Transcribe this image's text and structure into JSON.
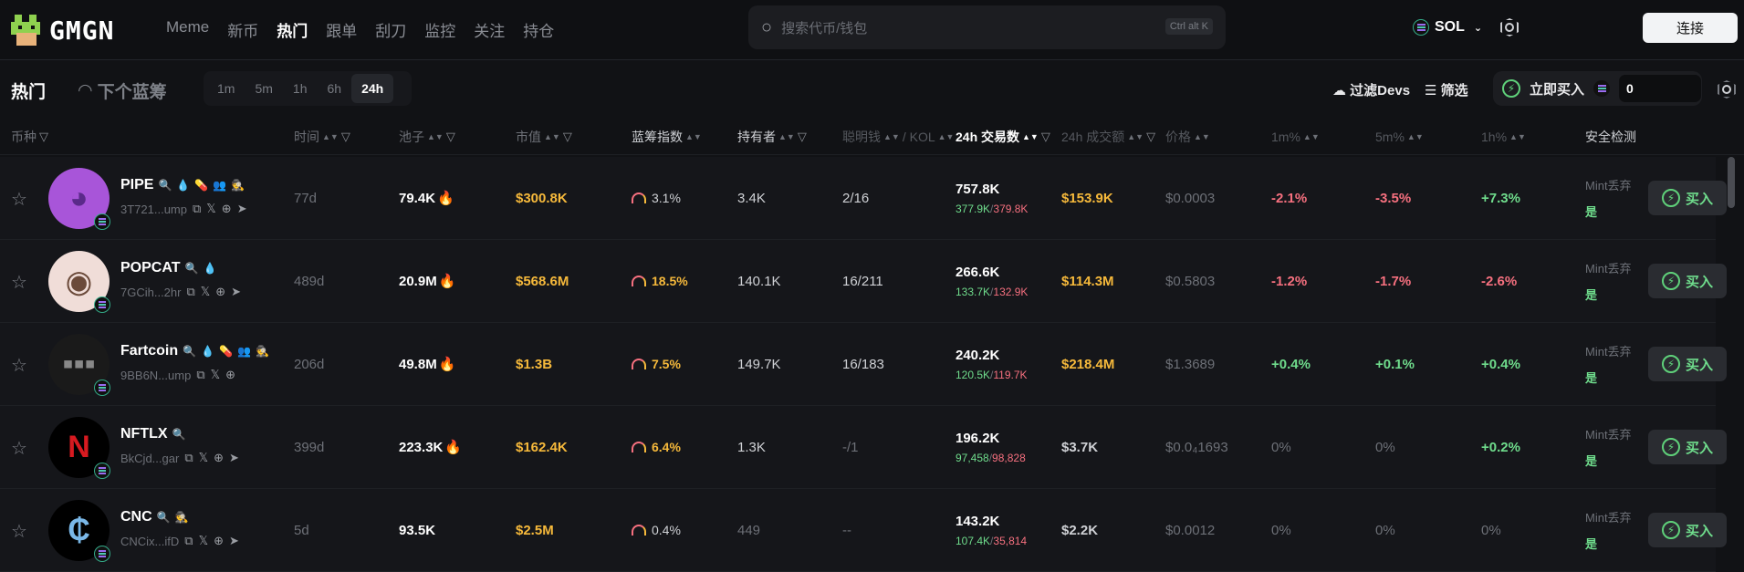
{
  "header": {
    "logo": "GMGN",
    "nav": [
      "Meme",
      "新币",
      "热门",
      "跟单",
      "刮刀",
      "监控",
      "关注",
      "持仓"
    ],
    "active_nav": "热门",
    "search_placeholder": "搜索代币/钱包",
    "search_shortcut": "Ctrl alt K",
    "chain": "SOL",
    "connect": "连接"
  },
  "subbar": {
    "title": "热门",
    "next_bluechip": "下个蓝筹",
    "time_tabs": [
      "1m",
      "5m",
      "1h",
      "6h",
      "24h"
    ],
    "active_tab": "24h",
    "filter_devs": "过滤Devs",
    "filter": "筛选",
    "quick_buy": "立即买入",
    "quick_buy_amount": "0"
  },
  "columns": {
    "coin": "币种",
    "age": "时间",
    "pool": "池子",
    "mcap": "市值",
    "bluechip": "蓝筹指数",
    "holders": "持有者",
    "smart": "聪明钱",
    "kol": "/ KOL",
    "txns": "24h 交易数",
    "volume": "24h 成交额",
    "price": "价格",
    "m1": "1m%",
    "m5": "5m%",
    "h1": "1h%",
    "safety": "安全检测"
  },
  "colors": {
    "accent_green": "#6fdc8c",
    "accent_red": "#f6707f",
    "gold": "#f6b93b"
  },
  "rows": [
    {
      "symbol": "PIPE",
      "address": "3T721...ump",
      "age": "77d",
      "pool": "79.4K",
      "pool_hot": true,
      "mcap": "$300.8K",
      "bluechip": "3.1%",
      "holders": "3.4K",
      "smart_kol": "2/16",
      "txns": "757.8K",
      "buys": "377.9K",
      "sells": "379.8K",
      "volume": "$153.9K",
      "price": "$0.0003",
      "m1": "-2.1%",
      "m5": "-3.5%",
      "h1": "+7.3%",
      "safety_label": "Mint丢弃",
      "safety_value": "是",
      "buy": "买入"
    },
    {
      "symbol": "POPCAT",
      "address": "7GCih...2hr",
      "age": "489d",
      "pool": "20.9M",
      "pool_hot": true,
      "mcap": "$568.6M",
      "bluechip": "18.5%",
      "holders": "140.1K",
      "smart_kol": "16/211",
      "txns": "266.6K",
      "buys": "133.7K",
      "sells": "132.9K",
      "volume": "$114.3M",
      "price": "$0.5803",
      "m1": "-1.2%",
      "m5": "-1.7%",
      "h1": "-2.6%",
      "safety_label": "Mint丢弃",
      "safety_value": "是",
      "buy": "买入"
    },
    {
      "symbol": "Fartcoin",
      "address": "9BB6N...ump",
      "age": "206d",
      "pool": "49.8M",
      "pool_hot": true,
      "mcap": "$1.3B",
      "bluechip": "7.5%",
      "holders": "149.7K",
      "smart_kol": "16/183",
      "txns": "240.2K",
      "buys": "120.5K",
      "sells": "119.7K",
      "volume": "$218.4M",
      "price": "$1.3689",
      "m1": "+0.4%",
      "m5": "+0.1%",
      "h1": "+0.4%",
      "safety_label": "Mint丢弃",
      "safety_value": "是",
      "buy": "买入"
    },
    {
      "symbol": "NFTLX",
      "address": "BkCjd...gar",
      "age": "399d",
      "pool": "223.3K",
      "pool_hot": true,
      "mcap": "$162.4K",
      "bluechip": "6.4%",
      "holders": "1.3K",
      "smart_kol": "-/1",
      "txns": "196.2K",
      "buys": "97,458",
      "sells": "98,828",
      "volume": "$3.7K",
      "price": "$0.0₄1693",
      "m1": "0%",
      "m5": "0%",
      "h1": "+0.2%",
      "safety_label": "Mint丢弃",
      "safety_value": "是",
      "buy": "买入"
    },
    {
      "symbol": "CNC",
      "address": "CNCix...ifD",
      "age": "5d",
      "pool": "93.5K",
      "pool_hot": false,
      "mcap": "$2.5M",
      "bluechip": "0.4%",
      "holders": "449",
      "smart_kol": "--",
      "txns": "143.2K",
      "buys": "107.4K",
      "sells": "35,814",
      "volume": "$2.2K",
      "price": "$0.0012",
      "m1": "0%",
      "m5": "0%",
      "h1": "0%",
      "safety_label": "Mint丢弃",
      "safety_value": "是",
      "buy": "买入"
    }
  ]
}
